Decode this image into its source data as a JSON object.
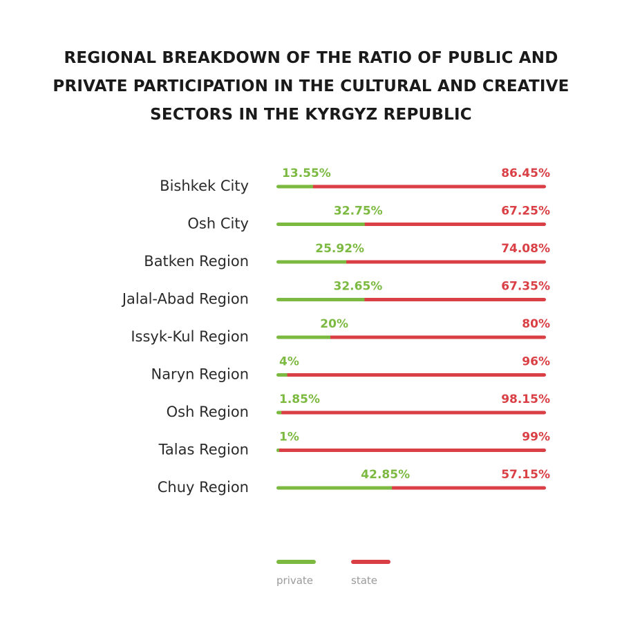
{
  "colors": {
    "private": "#7cb940",
    "state": "#d93f44"
  },
  "chart_data": {
    "type": "bar",
    "stacked": true,
    "orientation": "horizontal",
    "title": "REGIONAL BREAKDOWN OF THE RATIO OF PUBLIC AND PRIVATE PARTICIPATION IN THE CULTURAL AND CREATIVE SECTORS IN THE KYRGYZ REPUBLIC",
    "xlim": [
      0,
      100
    ],
    "grid": false,
    "legend": "bottom",
    "categories": [
      "Bishkek City",
      "Osh City",
      "Batken Region",
      "Jalal-Abad Region",
      "Issyk-Kul Region",
      "Naryn Region",
      "Osh Region",
      "Talas Region",
      "Chuy Region"
    ],
    "series": [
      {
        "name": "private",
        "values": [
          13.55,
          32.75,
          25.92,
          32.65,
          20,
          4,
          1.85,
          1,
          42.85
        ],
        "labels": [
          "13.55%",
          "32.75%",
          "25.92%",
          "32.65%",
          "20%",
          "4%",
          "1.85%",
          "1%",
          "42.85%"
        ]
      },
      {
        "name": "state",
        "values": [
          86.45,
          67.25,
          74.08,
          67.35,
          80,
          96,
          98.15,
          99,
          57.15
        ],
        "labels": [
          "86.45%",
          "67.25%",
          "74.08%",
          "67.35%",
          "80%",
          "96%",
          "98.15%",
          "99%",
          "57.15%"
        ]
      }
    ]
  }
}
